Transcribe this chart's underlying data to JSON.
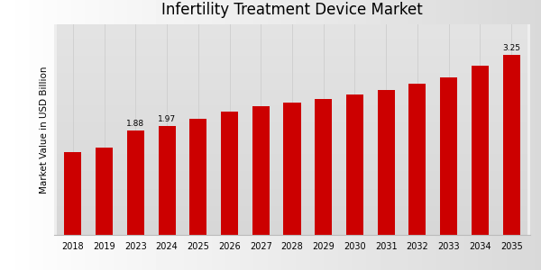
{
  "title": "Infertility Treatment Device Market",
  "ylabel": "Market Value in USD Billion",
  "categories": [
    "2018",
    "2019",
    "2023",
    "2024",
    "2025",
    "2026",
    "2027",
    "2028",
    "2029",
    "2030",
    "2031",
    "2032",
    "2033",
    "2034",
    "2035"
  ],
  "values": [
    1.5,
    1.58,
    1.88,
    1.97,
    2.1,
    2.22,
    2.32,
    2.38,
    2.45,
    2.54,
    2.62,
    2.73,
    2.85,
    3.05,
    3.25
  ],
  "bar_color": "#cc0000",
  "annotations": {
    "2023": "1.88",
    "2024": "1.97",
    "2035": "3.25"
  },
  "annotation_fontsize": 6.5,
  "title_fontsize": 12,
  "label_fontsize": 7.5,
  "tick_fontsize": 7,
  "bg_top": "#f5f5f5",
  "bg_bottom": "#d8d8d8",
  "grid_color": "#cccccc",
  "footer_color": "#cc0000",
  "ylim": [
    0,
    3.8
  ],
  "bar_width": 0.55
}
